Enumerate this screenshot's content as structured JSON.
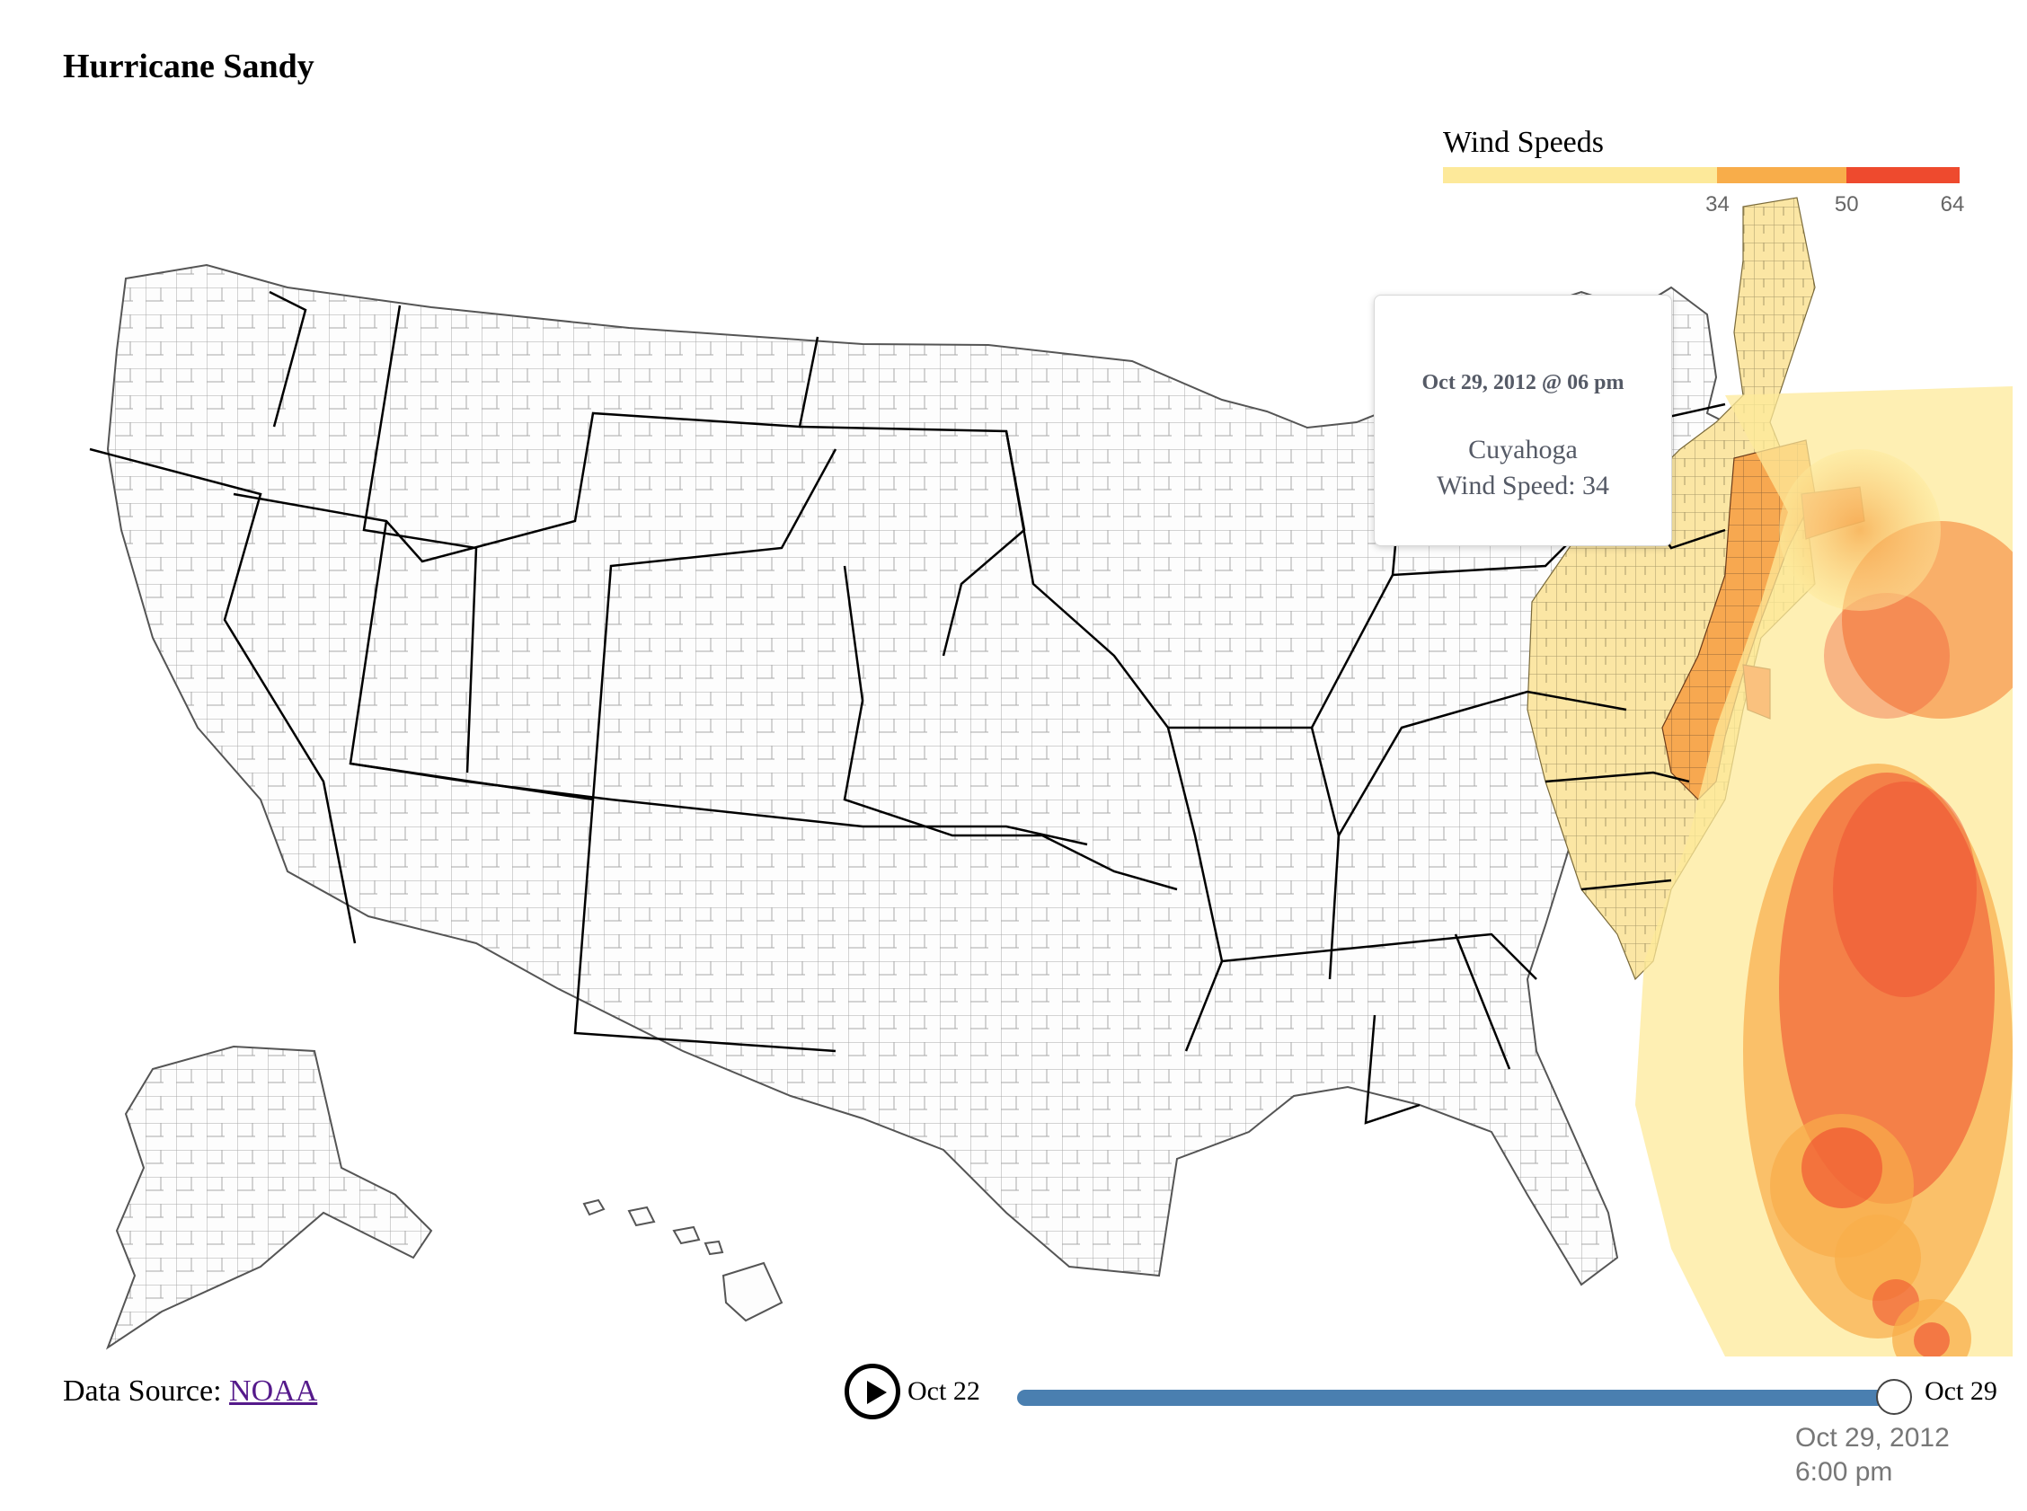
{
  "title": "Hurricane Sandy",
  "legend": {
    "title": "Wind Speeds",
    "segments": [
      {
        "from": 0,
        "to": 34,
        "color": "#fde99a"
      },
      {
        "from": 34,
        "to": 50,
        "color": "#f8ad4a"
      },
      {
        "from": 50,
        "to": 64,
        "color": "#ee4a2e"
      }
    ],
    "ticks": [
      "34",
      "50",
      "64"
    ]
  },
  "tooltip": {
    "date": "Oct 29, 2012 @ 06 pm",
    "county": "Cuyahoga",
    "speed_text": "Wind Speed: 34"
  },
  "footer": {
    "source_label": "Data Source: ",
    "source_link": "NOAA"
  },
  "timeline": {
    "start_label": "Oct 22",
    "end_label": "Oct 29",
    "current_date": "Oct 29, 2012",
    "current_time": "6:00 pm",
    "progress": 1.0
  },
  "colors": {
    "track": "#4a7fb0",
    "county_fill": "#ffffff",
    "county_stroke": "#9a9a9a",
    "state_stroke": "#000000",
    "tropical": "#fde99a",
    "strong": "#f8ad4a",
    "hurricane": "#ee4a2e"
  },
  "icons": {
    "play": "play-icon"
  }
}
